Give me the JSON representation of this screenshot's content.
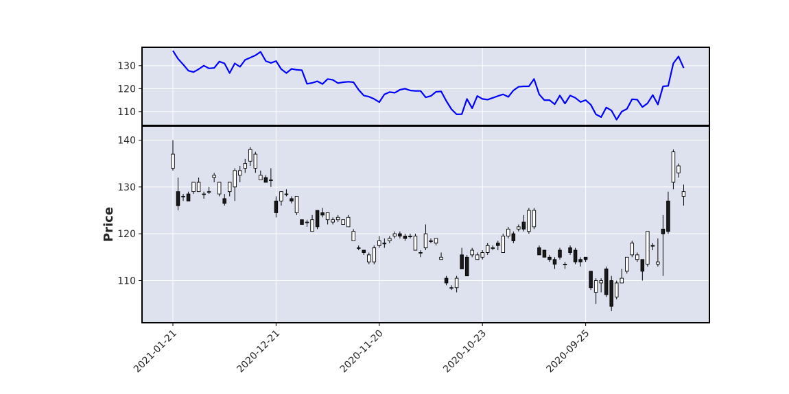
{
  "chart_data": [
    {
      "type": "line",
      "title": "",
      "xlabel": "",
      "ylabel": "",
      "ylim": [
        104,
        138
      ],
      "y_ticks": [
        110,
        120,
        130
      ],
      "grid": true,
      "colors": {
        "line": "#0000ff",
        "background": "#dde2ee",
        "grid": "#ffffff"
      },
      "series": [
        {
          "values": [
            136.5,
            133,
            130.5,
            127.8,
            127.2,
            128.5,
            130,
            128.8,
            129,
            131.8,
            131,
            126.8,
            131,
            129.5,
            132.5,
            133.5,
            134.5,
            136,
            132,
            131.2,
            132,
            128.5,
            126.8,
            128.6,
            128.2,
            128,
            122.1,
            122.5,
            123.2,
            122,
            124.2,
            123.8,
            122.4,
            122.8,
            123,
            122.8,
            119.5,
            117,
            116.5,
            115.5,
            114.1,
            117.5,
            118.5,
            118.2,
            119.5,
            120,
            119.2,
            119,
            119,
            116.2,
            116.8,
            118.6,
            118.8,
            114.6,
            111,
            108.8,
            108.9,
            115.5,
            111.5,
            116.8,
            115.5,
            115.2,
            116,
            116.8,
            117.5,
            116.4,
            119.2,
            120.8,
            121,
            121,
            124.2,
            117.5,
            115,
            115,
            113.2,
            117,
            113.5,
            117,
            116,
            114.2,
            115,
            113,
            108.8,
            107.6,
            111.8,
            110.5,
            106.5,
            110,
            111.2,
            115.4,
            115.2,
            112,
            113.6,
            117.2,
            113.1,
            121,
            121.2,
            131,
            134,
            129
          ]
        }
      ]
    },
    {
      "type": "candlestick",
      "title": "",
      "xlabel": "",
      "ylabel": "Price",
      "ylim": [
        101,
        143
      ],
      "y_ticks": [
        110,
        120,
        130,
        140
      ],
      "x_tick_labels": [
        "2021-01-21",
        "2020-12-21",
        "2020-11-20",
        "2020-10-23",
        "2020-09-25"
      ],
      "x_tick_index": [
        0,
        20,
        40,
        60,
        80
      ],
      "grid": true,
      "colors": {
        "up": "#ffffff",
        "down": "#1a1a1a",
        "edge": "#000000",
        "background": "#dde2ee",
        "grid": "#ffffff"
      },
      "candles": [
        [
          134,
          137,
          140,
          133.5
        ],
        [
          129,
          126,
          132,
          125
        ],
        [
          128,
          128,
          128.5,
          127
        ],
        [
          128.5,
          127,
          129,
          127
        ],
        [
          129,
          131,
          131,
          128.5
        ],
        [
          129,
          131,
          132,
          129
        ],
        [
          128.5,
          128.5,
          129,
          127.5
        ],
        [
          129,
          129,
          130,
          128.5
        ],
        [
          132,
          132.5,
          133,
          131
        ],
        [
          128.5,
          131,
          131,
          128
        ],
        [
          127.5,
          126.5,
          128.5,
          126
        ],
        [
          129,
          131,
          131,
          128
        ],
        [
          130,
          133.5,
          134,
          127
        ],
        [
          132.5,
          133.5,
          134.5,
          131
        ],
        [
          134,
          135,
          136,
          133
        ],
        [
          135.5,
          138,
          138.5,
          134.5
        ],
        [
          134,
          137,
          137.5,
          133
        ],
        [
          131.5,
          132.5,
          133.5,
          131.5
        ],
        [
          132,
          131,
          132.5,
          131
        ],
        [
          131.5,
          131.5,
          134,
          130
        ],
        [
          127,
          124.5,
          128,
          123.5
        ],
        [
          127,
          129,
          129,
          126
        ],
        [
          128.5,
          128.5,
          129.5,
          128
        ],
        [
          127.5,
          127,
          128,
          126.5
        ],
        [
          124.5,
          128,
          128,
          124
        ],
        [
          123,
          122,
          123,
          122
        ],
        [
          122.5,
          122.5,
          123,
          121.5
        ],
        [
          120.5,
          123,
          124,
          120.5
        ],
        [
          125,
          121.5,
          125,
          121
        ],
        [
          124.5,
          124,
          125.5,
          123.5
        ],
        [
          123,
          124.5,
          124.5,
          122
        ],
        [
          122.5,
          123,
          123.5,
          122
        ],
        [
          123,
          123.5,
          124,
          122.5
        ],
        [
          122,
          123,
          123,
          122
        ],
        [
          121.5,
          123.5,
          124,
          121.5
        ],
        [
          118.5,
          120.5,
          121,
          118.5
        ],
        [
          117,
          117,
          117.5,
          116.5
        ],
        [
          116.5,
          116,
          116.5,
          115.5
        ],
        [
          114,
          115.5,
          116,
          113.5
        ],
        [
          114,
          117,
          117.5,
          113.5
        ],
        [
          117.5,
          118.5,
          119.5,
          117
        ],
        [
          118,
          118,
          119,
          117
        ],
        [
          118.5,
          119,
          119.5,
          118
        ],
        [
          119.5,
          120,
          120.5,
          119
        ],
        [
          120,
          119.5,
          120.5,
          119
        ],
        [
          119.5,
          119,
          120,
          118.5
        ],
        [
          119.5,
          119.5,
          120,
          119
        ],
        [
          116.5,
          119.5,
          120,
          116.5
        ],
        [
          116,
          116,
          116.5,
          115
        ],
        [
          117,
          120,
          122,
          116.5
        ],
        [
          118.5,
          118.5,
          119,
          118
        ],
        [
          118,
          119,
          119,
          117.5
        ],
        [
          114.5,
          115,
          116,
          114.5
        ],
        [
          110.5,
          109.5,
          111,
          109
        ],
        [
          108.5,
          108.5,
          109,
          108
        ],
        [
          108.5,
          110.5,
          111,
          107.5
        ],
        [
          115.5,
          112.5,
          117,
          112.5
        ],
        [
          115,
          111,
          115.5,
          111
        ],
        [
          115.5,
          116.5,
          117,
          115
        ],
        [
          114.5,
          115.5,
          116,
          114.5
        ],
        [
          115,
          116,
          116.5,
          114.5
        ],
        [
          116,
          117.5,
          118,
          115.5
        ],
        [
          117,
          117,
          117.5,
          116.5
        ],
        [
          118,
          117.5,
          118.5,
          116.5
        ],
        [
          116,
          119.5,
          120,
          116
        ],
        [
          119.5,
          121,
          121.5,
          119
        ],
        [
          120,
          118.5,
          120.5,
          118
        ],
        [
          121,
          121.5,
          122,
          120.5
        ],
        [
          122.5,
          121,
          124,
          120.5
        ],
        [
          120.5,
          125,
          125.5,
          120
        ],
        [
          121.5,
          125,
          125.5,
          121
        ],
        [
          117,
          115.5,
          117.5,
          115.5
        ],
        [
          116.5,
          115,
          116.5,
          115
        ],
        [
          115,
          114.5,
          115.5,
          114
        ],
        [
          114.5,
          113.5,
          115,
          112.5
        ],
        [
          116.5,
          115,
          117,
          114.5
        ],
        [
          113.5,
          113.5,
          114,
          112.5
        ],
        [
          117,
          116,
          117.5,
          115.5
        ],
        [
          116.5,
          114,
          117,
          113.5
        ],
        [
          114.5,
          114,
          115,
          113
        ],
        [
          115,
          114.5,
          115,
          114
        ],
        [
          112,
          108.5,
          112,
          108
        ],
        [
          107.5,
          110,
          110.5,
          105
        ],
        [
          109.5,
          110,
          110.5,
          107.5
        ],
        [
          112.5,
          107,
          113,
          106.5
        ],
        [
          110,
          104.5,
          111,
          103.5
        ],
        [
          106.5,
          109.5,
          110,
          106
        ],
        [
          109.5,
          110.5,
          112.5,
          109.5
        ],
        [
          112,
          115,
          115,
          111.5
        ],
        [
          115.5,
          118,
          118.5,
          115
        ],
        [
          114.5,
          115.5,
          116,
          114
        ],
        [
          114.5,
          112,
          114.5,
          110
        ],
        [
          113.5,
          120.5,
          120.5,
          113
        ],
        [
          117.5,
          117.5,
          118,
          116.5
        ],
        [
          113.5,
          114,
          119,
          113
        ],
        [
          121,
          120,
          124,
          111
        ],
        [
          127,
          120.5,
          129,
          120
        ],
        [
          131,
          137.5,
          138,
          129.5
        ],
        [
          133,
          134.5,
          135,
          132
        ],
        [
          128,
          129,
          130.5,
          126
        ]
      ]
    }
  ]
}
